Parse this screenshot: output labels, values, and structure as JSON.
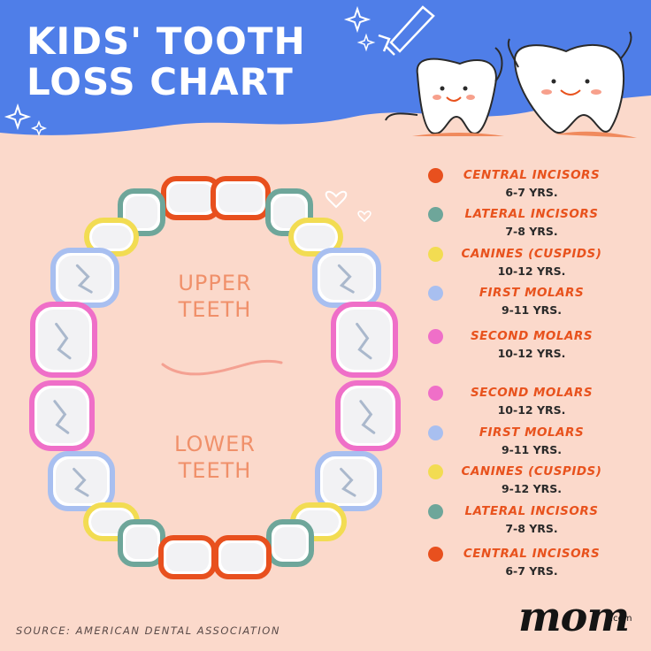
{
  "header": {
    "title_line1": "KIDS' TOOTH",
    "title_line2": "LOSS CHART",
    "background_color": "#4f7ee8",
    "decoration_icons": [
      "sparkle-icon",
      "toothpaste-icon",
      "happy-tooth-icon"
    ]
  },
  "diagram": {
    "upper_label": "UPPER TEETH",
    "lower_label": "LOWER TEETH",
    "colors": {
      "central_incisors": "#e8501e",
      "lateral_incisors": "#6ea69a",
      "canines": "#f2dc52",
      "first_molars": "#a8bff0",
      "second_molars": "#ef6fc8"
    }
  },
  "legend": {
    "upper": [
      {
        "name": "CENTRAL INCISORS",
        "age": "6-7 YRS.",
        "color": "#e8501e"
      },
      {
        "name": "LATERAL INCISORS",
        "age": "7-8 YRS.",
        "color": "#6ea69a"
      },
      {
        "name": "CANINES (CUSPIDS)",
        "age": "10-12 YRS.",
        "color": "#f2dc52"
      },
      {
        "name": "FIRST MOLARS",
        "age": "9-11 YRS.",
        "color": "#a8bff0"
      },
      {
        "name": "SECOND MOLARS",
        "age": "10-12 YRS.",
        "color": "#ef6fc8"
      }
    ],
    "lower": [
      {
        "name": "SECOND MOLARS",
        "age": "10-12 YRS.",
        "color": "#ef6fc8"
      },
      {
        "name": "FIRST MOLARS",
        "age": "9-11 YRS.",
        "color": "#a8bff0"
      },
      {
        "name": "CANINES (CUSPIDS)",
        "age": "9-12 YRS.",
        "color": "#f2dc52"
      },
      {
        "name": "LATERAL INCISORS",
        "age": "7-8 YRS.",
        "color": "#6ea69a"
      },
      {
        "name": "CENTRAL INCISORS",
        "age": "6-7 YRS.",
        "color": "#e8501e"
      }
    ]
  },
  "footer": {
    "source": "SOURCE: AMERICAN DENTAL ASSOCIATION",
    "logo": "mom",
    "logo_suffix": ".com"
  }
}
